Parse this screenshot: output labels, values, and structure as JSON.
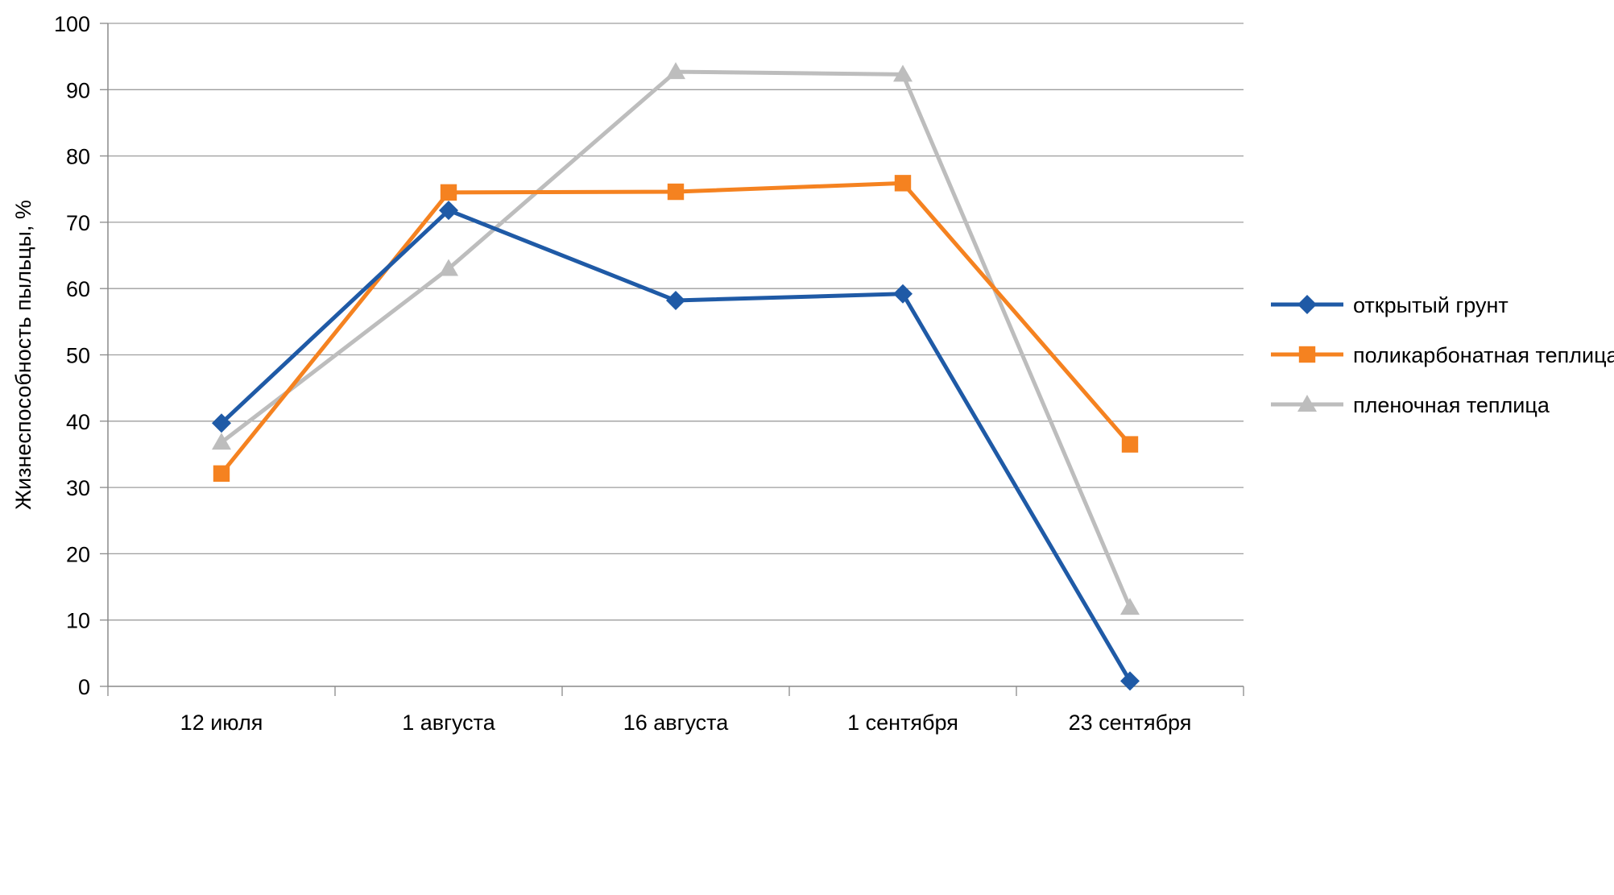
{
  "chart_data": {
    "type": "line",
    "title": "",
    "xlabel": "",
    "ylabel": "Жизнеспособность пыльцы, %",
    "categories": [
      "12 июля",
      "1 августа",
      "16 августа",
      "1 сентября",
      "23 сентября"
    ],
    "ylim": [
      0,
      100
    ],
    "yticks": [
      0,
      10,
      20,
      30,
      40,
      50,
      60,
      70,
      80,
      90,
      100
    ],
    "grid": true,
    "legend_position": "right",
    "series": [
      {
        "name": "открытый грунт",
        "color": "#1f5aa6",
        "marker": "diamond",
        "values": [
          39.7,
          71.8,
          58.2,
          59.2,
          0.8
        ]
      },
      {
        "name": "поликарбонатная теплица",
        "color": "#f58220",
        "marker": "square",
        "values": [
          32.1,
          74.5,
          74.6,
          75.9,
          36.5
        ]
      },
      {
        "name": "пленочная теплица",
        "color": "#bdbdbd",
        "marker": "triangle",
        "values": [
          36.8,
          63.0,
          92.7,
          92.3,
          11.9
        ]
      }
    ]
  }
}
